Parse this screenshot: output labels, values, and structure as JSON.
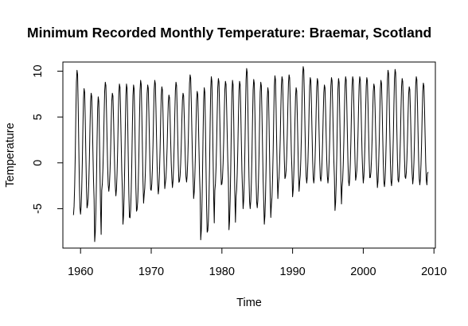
{
  "chart_data": {
    "type": "line",
    "title": "Minimum Recorded Monthly Temperature: Braemar, Scotland",
    "xlabel": "Time",
    "ylabel": "Temperature",
    "xlim": [
      1957.5,
      2010.2
    ],
    "ylim": [
      -9.3,
      11.0
    ],
    "x_ticks": [
      1960,
      1970,
      1980,
      1990,
      2000,
      2010
    ],
    "x_tick_labels": [
      "1960",
      "1970",
      "1980",
      "1990",
      "2000",
      "2010"
    ],
    "y_ticks": [
      -5,
      0,
      5,
      10
    ],
    "y_tick_labels": [
      "-5",
      "0",
      "5",
      "10"
    ],
    "grid": false,
    "legend": "none",
    "series": [
      {
        "x_start": 1959.0,
        "x_step": 0.0833333,
        "annual_minimums": [
          -5.7,
          -5.6,
          -4.6,
          -8.6,
          -3.0,
          -3.1,
          -3.6,
          -6.7,
          -6.0,
          -5.1,
          -3.5,
          -3.0,
          -3.4,
          -2.2,
          -2.7,
          -2.0,
          -2.1,
          -3.9,
          -8.4,
          -7.4,
          -3.0,
          -2.3,
          -7.3,
          -3.7,
          -5.0,
          -5.0,
          -4.9,
          -6.7,
          -4.6,
          -2.3,
          -1.5,
          -3.7,
          -2.1,
          -2.2,
          -2.2,
          -2.0,
          -2.2,
          -5.2,
          -2.6,
          -2.5,
          -1.5,
          -2.2,
          -1.6,
          -2.7,
          -2.6,
          -2.5,
          -2.1,
          -1.7,
          -2.3,
          -2.4
        ],
        "annual_maximums": [
          10.1,
          8.1,
          7.6,
          7.2,
          8.8,
          7.6,
          8.6,
          8.6,
          8.5,
          9.0,
          8.5,
          9.0,
          8.3,
          7.4,
          8.8,
          7.6,
          9.6,
          7.8,
          8.2,
          9.4,
          9.2,
          8.9,
          9.0,
          8.9,
          10.3,
          9.1,
          8.8,
          8.2,
          9.5,
          9.4,
          9.6,
          8.2,
          10.5,
          9.3,
          9.2,
          8.5,
          9.3,
          9.2,
          9.4,
          9.4,
          9.4,
          9.3,
          8.6,
          9.0,
          10.1,
          10.2,
          9.2,
          8.3,
          9.4,
          8.7
        ],
        "monthly_shape": [
          0.0,
          0.06,
          0.2,
          0.41,
          0.69,
          0.92,
          1.0,
          0.97,
          0.75,
          0.48,
          0.22,
          0.05
        ],
        "end_values": [
          -2.4,
          -1.2,
          -1.0
        ]
      }
    ]
  }
}
